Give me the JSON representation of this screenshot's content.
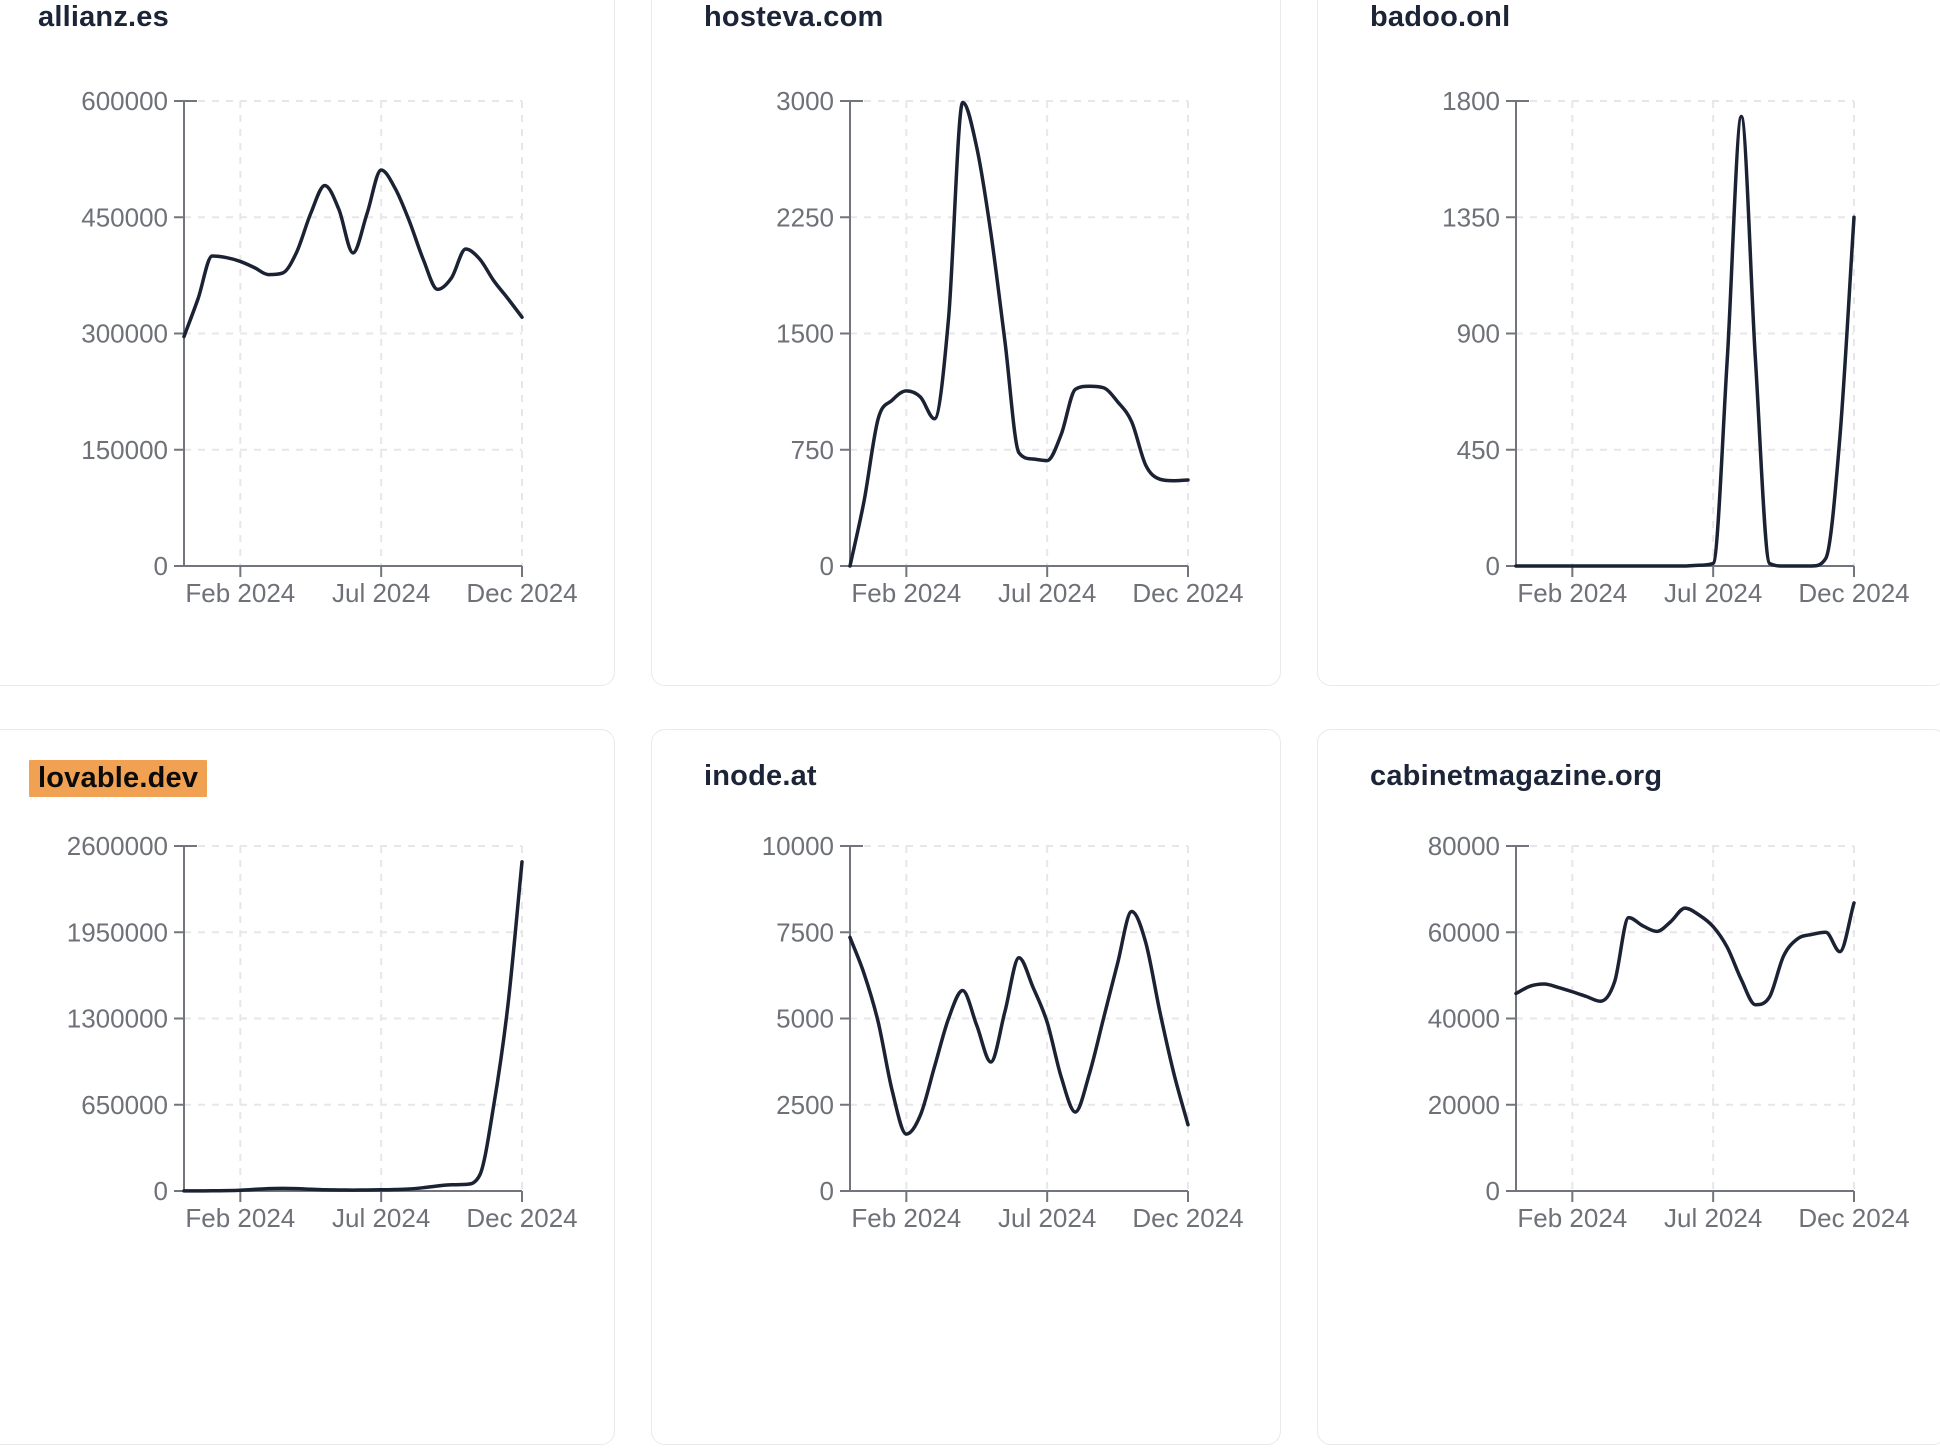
{
  "x_axis": {
    "tick_labels": [
      "Feb 2024",
      "Jul 2024",
      "Dec 2024"
    ],
    "tick_indices": [
      4,
      14,
      24
    ]
  },
  "style": {
    "line_color": "#1b2233",
    "axis_color": "#72757e",
    "label_color": "#6e7178",
    "grid_color": "#e7e7ea",
    "title_color": "#1c2438",
    "highlight_bg": "#f0a152",
    "card_border": "#e9e9ec"
  },
  "chart_data": [
    {
      "type": "line",
      "title": "allianz.es",
      "highlighted": false,
      "ylim": [
        0,
        600000
      ],
      "y_ticks": [
        0,
        150000,
        300000,
        450000,
        600000
      ],
      "x_tick_labels": [
        "Feb 2024",
        "Jul 2024",
        "Dec 2024"
      ],
      "x_tick_indices": [
        4,
        14,
        24
      ],
      "values": [
        296000,
        345000,
        400000,
        398000,
        393000,
        385000,
        376000,
        378000,
        405000,
        455000,
        491000,
        460000,
        404000,
        455000,
        511000,
        487000,
        445000,
        395000,
        357000,
        372000,
        409000,
        396000,
        368000,
        345000,
        321000
      ]
    },
    {
      "type": "line",
      "title": "hosteva.com",
      "highlighted": false,
      "ylim": [
        0,
        3000
      ],
      "y_ticks": [
        0,
        750,
        1500,
        2250,
        3000
      ],
      "x_tick_labels": [
        "Feb 2024",
        "Jul 2024",
        "Dec 2024"
      ],
      "x_tick_indices": [
        4,
        14,
        24
      ],
      "values": [
        0,
        420,
        950,
        1070,
        1130,
        1090,
        950,
        1600,
        2990,
        2700,
        2150,
        1450,
        730,
        690,
        680,
        850,
        1140,
        1160,
        1150,
        1060,
        930,
        650,
        560,
        550,
        555
      ]
    },
    {
      "type": "line",
      "title": "badoo.onl",
      "highlighted": false,
      "ylim": [
        0,
        1800
      ],
      "y_ticks": [
        0,
        450,
        900,
        1350,
        1800
      ],
      "x_tick_labels": [
        "Feb 2024",
        "Jul 2024",
        "Dec 2024"
      ],
      "x_tick_indices": [
        4,
        14,
        24
      ],
      "values": [
        0,
        0,
        0,
        0,
        0,
        0,
        0,
        0,
        0,
        0,
        0,
        0,
        0,
        3,
        10,
        800,
        1740,
        800,
        10,
        0,
        0,
        0,
        30,
        500,
        1350
      ]
    },
    {
      "type": "line",
      "title": "lovable.dev",
      "highlighted": true,
      "ylim": [
        0,
        2600000
      ],
      "y_ticks": [
        0,
        650000,
        1300000,
        1950000,
        2600000
      ],
      "x_tick_labels": [
        "Feb 2024",
        "Jul 2024",
        "Dec 2024"
      ],
      "x_tick_indices": [
        4,
        14,
        24
      ],
      "values": [
        1000,
        1000,
        1500,
        3000,
        6000,
        12000,
        18000,
        20000,
        18000,
        13000,
        9000,
        8000,
        7000,
        8000,
        9000,
        11000,
        15000,
        25000,
        38000,
        47000,
        50000,
        120000,
        650000,
        1400000,
        2480000
      ]
    },
    {
      "type": "line",
      "title": "inode.at",
      "highlighted": false,
      "ylim": [
        0,
        10000
      ],
      "y_ticks": [
        0,
        2500,
        5000,
        7500,
        10000
      ],
      "x_tick_labels": [
        "Feb 2024",
        "Jul 2024",
        "Dec 2024"
      ],
      "x_tick_indices": [
        4,
        14,
        24
      ],
      "values": [
        7350,
        6300,
        4900,
        2900,
        1650,
        2200,
        3600,
        5000,
        5810,
        4800,
        3740,
        5200,
        6760,
        5900,
        4890,
        3300,
        2290,
        3400,
        5000,
        6600,
        8100,
        7200,
        5200,
        3400,
        1920
      ]
    },
    {
      "type": "line",
      "title": "cabinetmagazine.org",
      "highlighted": false,
      "ylim": [
        0,
        80000
      ],
      "y_ticks": [
        0,
        20000,
        40000,
        60000,
        80000
      ],
      "x_tick_labels": [
        "Feb 2024",
        "Jul 2024",
        "Dec 2024"
      ],
      "x_tick_indices": [
        4,
        14,
        24
      ],
      "values": [
        45800,
        47500,
        48000,
        47200,
        46200,
        45100,
        44000,
        48500,
        63400,
        61500,
        60200,
        62500,
        65600,
        64000,
        61300,
        56500,
        49000,
        43200,
        45000,
        54500,
        58500,
        59500,
        60000,
        55500,
        66800
      ]
    }
  ]
}
